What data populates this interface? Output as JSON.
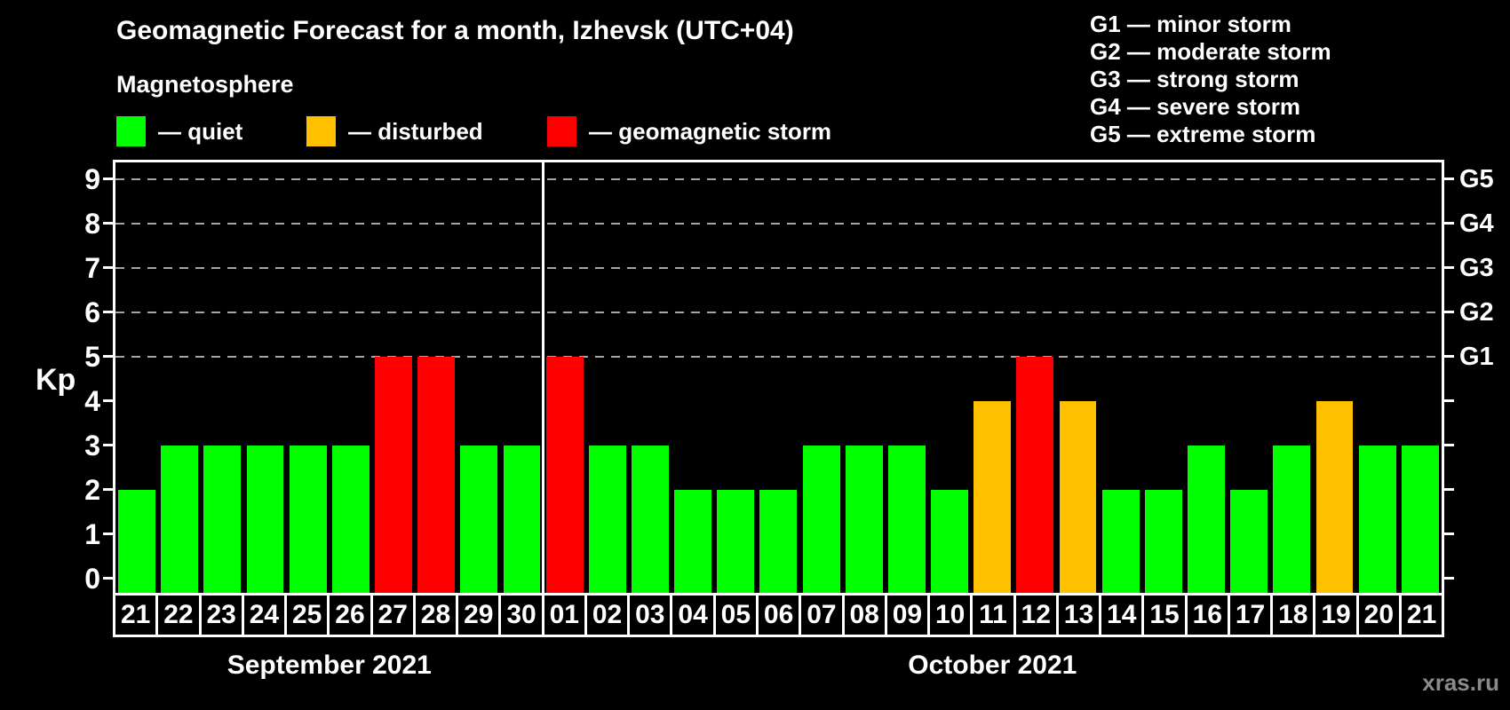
{
  "header": {
    "title": "Geomagnetic Forecast for a month, Izhevsk (UTC+04)",
    "subtitle": "Magnetosphere"
  },
  "legend": {
    "items": [
      {
        "id": "quiet",
        "label": "— quiet",
        "color": "#00ff00"
      },
      {
        "id": "disturbed",
        "label": "— disturbed",
        "color": "#ffc000"
      },
      {
        "id": "storm",
        "label": "— geomagnetic storm",
        "color": "#ff0000"
      }
    ]
  },
  "storm_scale": [
    "G1 — minor storm",
    "G2 — moderate storm",
    "G3 — strong storm",
    "G4 — severe storm",
    "G5 — extreme storm"
  ],
  "axes": {
    "y_title": "Kp"
  },
  "watermark": "xras.ru",
  "colors": {
    "background": "#000000",
    "text": "#ffffff",
    "grid": "#a5a5a5",
    "axis": "#ffffff",
    "watermark": "#8a8a8a"
  },
  "chart_data": {
    "type": "bar",
    "title": "Geomagnetic Forecast for a month, Izhevsk (UTC+04)",
    "ylabel": "Kp",
    "ylim": [
      -0.3,
      9.4
    ],
    "y_ticks": [
      0,
      1,
      2,
      3,
      4,
      5,
      6,
      7,
      8,
      9
    ],
    "gridline_levels": [
      5,
      6,
      7,
      8,
      9
    ],
    "grid": "dashed horizontal lines at storm levels only",
    "legend_position": "top-left",
    "right_axis": [
      {
        "kp": 5,
        "label": "G1"
      },
      {
        "kp": 6,
        "label": "G2"
      },
      {
        "kp": 7,
        "label": "G3"
      },
      {
        "kp": 8,
        "label": "G4"
      },
      {
        "kp": 9,
        "label": "G5"
      }
    ],
    "level_colors": {
      "quiet": "#00ff00",
      "disturbed": "#ffc000",
      "storm": "#ff0000"
    },
    "months": [
      {
        "label": "September 2021",
        "days": [
          "21",
          "22",
          "23",
          "24",
          "25",
          "26",
          "27",
          "28",
          "29",
          "30"
        ],
        "kp": [
          2,
          3,
          3,
          3,
          3,
          3,
          5,
          5,
          3,
          3
        ],
        "levels": [
          "quiet",
          "quiet",
          "quiet",
          "quiet",
          "quiet",
          "quiet",
          "storm",
          "storm",
          "quiet",
          "quiet"
        ]
      },
      {
        "label": "October 2021",
        "days": [
          "01",
          "02",
          "03",
          "04",
          "05",
          "06",
          "07",
          "08",
          "09",
          "10",
          "11",
          "12",
          "13",
          "14",
          "15",
          "16",
          "17",
          "18",
          "19",
          "20",
          "21"
        ],
        "kp": [
          5,
          3,
          3,
          2,
          2,
          2,
          3,
          3,
          3,
          2,
          4,
          5,
          4,
          2,
          2,
          3,
          2,
          3,
          4,
          3,
          3
        ],
        "levels": [
          "storm",
          "quiet",
          "quiet",
          "quiet",
          "quiet",
          "quiet",
          "quiet",
          "quiet",
          "quiet",
          "quiet",
          "disturbed",
          "storm",
          "disturbed",
          "quiet",
          "quiet",
          "quiet",
          "quiet",
          "quiet",
          "disturbed",
          "quiet",
          "quiet"
        ]
      }
    ]
  }
}
